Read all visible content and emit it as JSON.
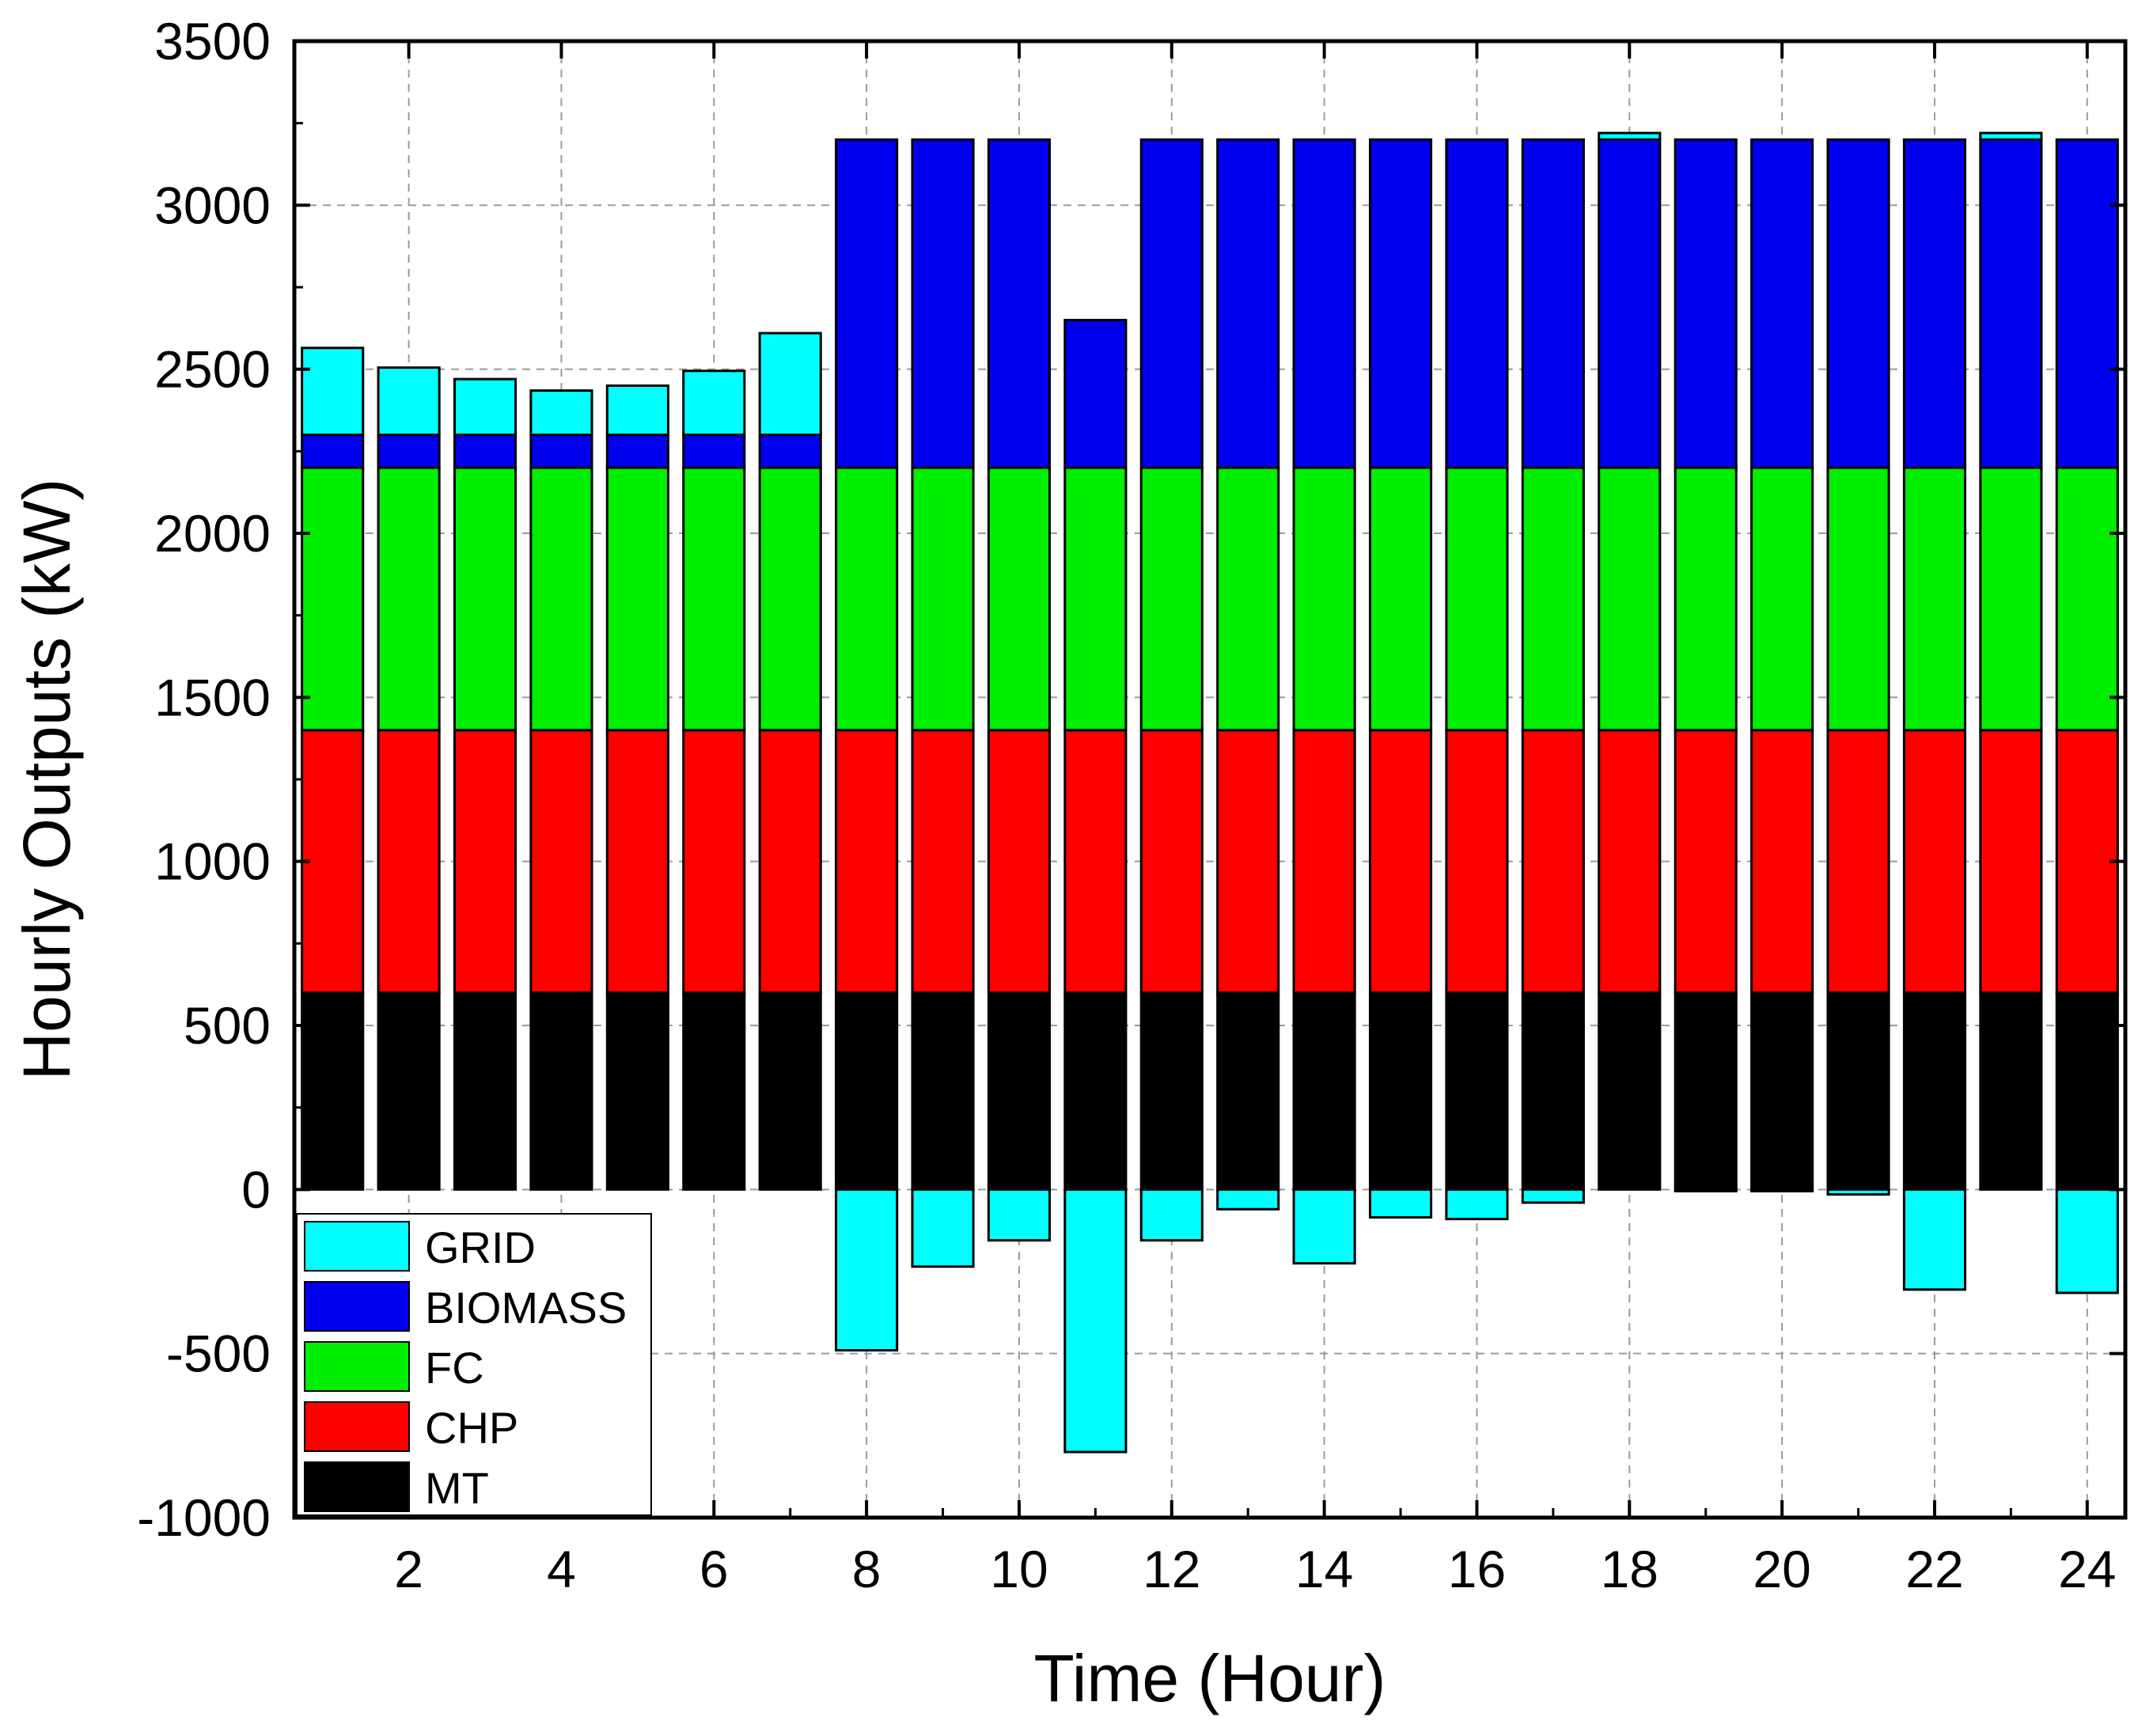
{
  "chart_data": {
    "type": "bar",
    "stacked": true,
    "xlabel": "Time (Hour)",
    "ylabel": "Hourly Outputs (kW)",
    "ylim": [
      -1000,
      3500
    ],
    "yticks": [
      -1000,
      -500,
      0,
      500,
      1000,
      1500,
      2000,
      2500,
      3000,
      3500
    ],
    "yticklabels": [
      "-1000",
      "-500",
      "0",
      "500",
      "1000",
      "1500",
      "2000",
      "2500",
      "3000",
      "3500"
    ],
    "xlim": [
      0.5,
      24.5
    ],
    "xticks": [
      2,
      4,
      6,
      8,
      10,
      12,
      14,
      16,
      18,
      20,
      22,
      24
    ],
    "xticklabels": [
      "2",
      "4",
      "6",
      "8",
      "10",
      "12",
      "14",
      "16",
      "18",
      "20",
      "22",
      "24"
    ],
    "grid": true,
    "legend_position": "bottom-left",
    "categories": [
      1,
      2,
      3,
      4,
      5,
      6,
      7,
      8,
      9,
      10,
      11,
      12,
      13,
      14,
      15,
      16,
      17,
      18,
      19,
      20,
      21,
      22,
      23,
      24
    ],
    "series": [
      {
        "name": "MT",
        "color": "#000000",
        "values": [
          600,
          600,
          600,
          600,
          600,
          600,
          600,
          600,
          600,
          600,
          600,
          600,
          600,
          600,
          600,
          600,
          600,
          600,
          600,
          600,
          600,
          600,
          600,
          600
        ]
      },
      {
        "name": "CHP",
        "color": "#ff0000",
        "values": [
          800,
          800,
          800,
          800,
          800,
          800,
          800,
          800,
          800,
          800,
          800,
          800,
          800,
          800,
          800,
          800,
          800,
          800,
          800,
          800,
          800,
          800,
          800,
          800
        ]
      },
      {
        "name": "FC",
        "color": "#00ee00",
        "values": [
          800,
          800,
          800,
          800,
          800,
          800,
          800,
          800,
          800,
          800,
          800,
          800,
          800,
          800,
          800,
          800,
          800,
          800,
          800,
          800,
          800,
          800,
          800,
          800
        ]
      },
      {
        "name": "BIOMASS",
        "color": "#0000ee",
        "values": [
          100,
          100,
          100,
          100,
          100,
          100,
          100,
          1000,
          1000,
          1000,
          450,
          1000,
          1000,
          1000,
          1000,
          1000,
          1000,
          1000,
          1000,
          1000,
          1000,
          1000,
          1000,
          1000
        ]
      },
      {
        "name": "GRID",
        "color": "#00ffff",
        "values": [
          265,
          205,
          170,
          135,
          150,
          195,
          310,
          -490,
          -235,
          -155,
          -800,
          -155,
          -60,
          -225,
          -85,
          -90,
          -40,
          20,
          -5,
          -5,
          -15,
          -305,
          20,
          -315
        ]
      }
    ],
    "legend_order": [
      "GRID",
      "BIOMASS",
      "FC",
      "CHP",
      "MT"
    ]
  }
}
